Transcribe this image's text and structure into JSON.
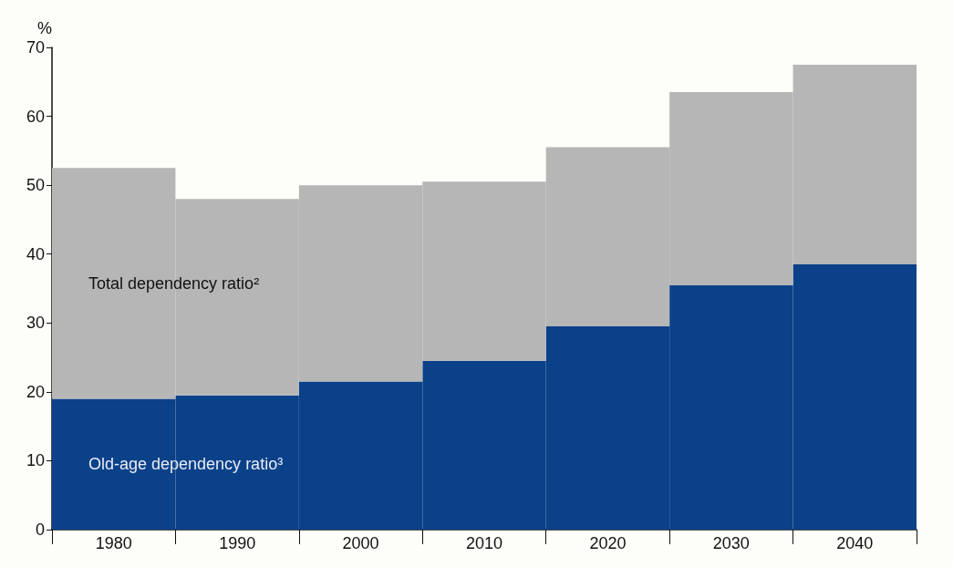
{
  "chart_data": {
    "type": "bar",
    "stacked": true,
    "ylabel": "%",
    "categories": [
      "1980",
      "1990",
      "2000",
      "2010",
      "2020",
      "2030",
      "2040"
    ],
    "series": [
      {
        "name": "Old-age dependency ratio³",
        "color": "#0b4189",
        "values": [
          19,
          19.5,
          21.5,
          24.5,
          29.5,
          35.5,
          38.5
        ]
      },
      {
        "name": "Total dependency ratio²",
        "color": "#b6b6b6",
        "values": [
          33.5,
          28.5,
          28.5,
          26,
          26,
          28,
          29
        ]
      }
    ],
    "ylim": [
      0,
      70
    ],
    "yticks": [
      0,
      10,
      20,
      30,
      40,
      50,
      60,
      70
    ],
    "grid": false,
    "legend": false
  }
}
